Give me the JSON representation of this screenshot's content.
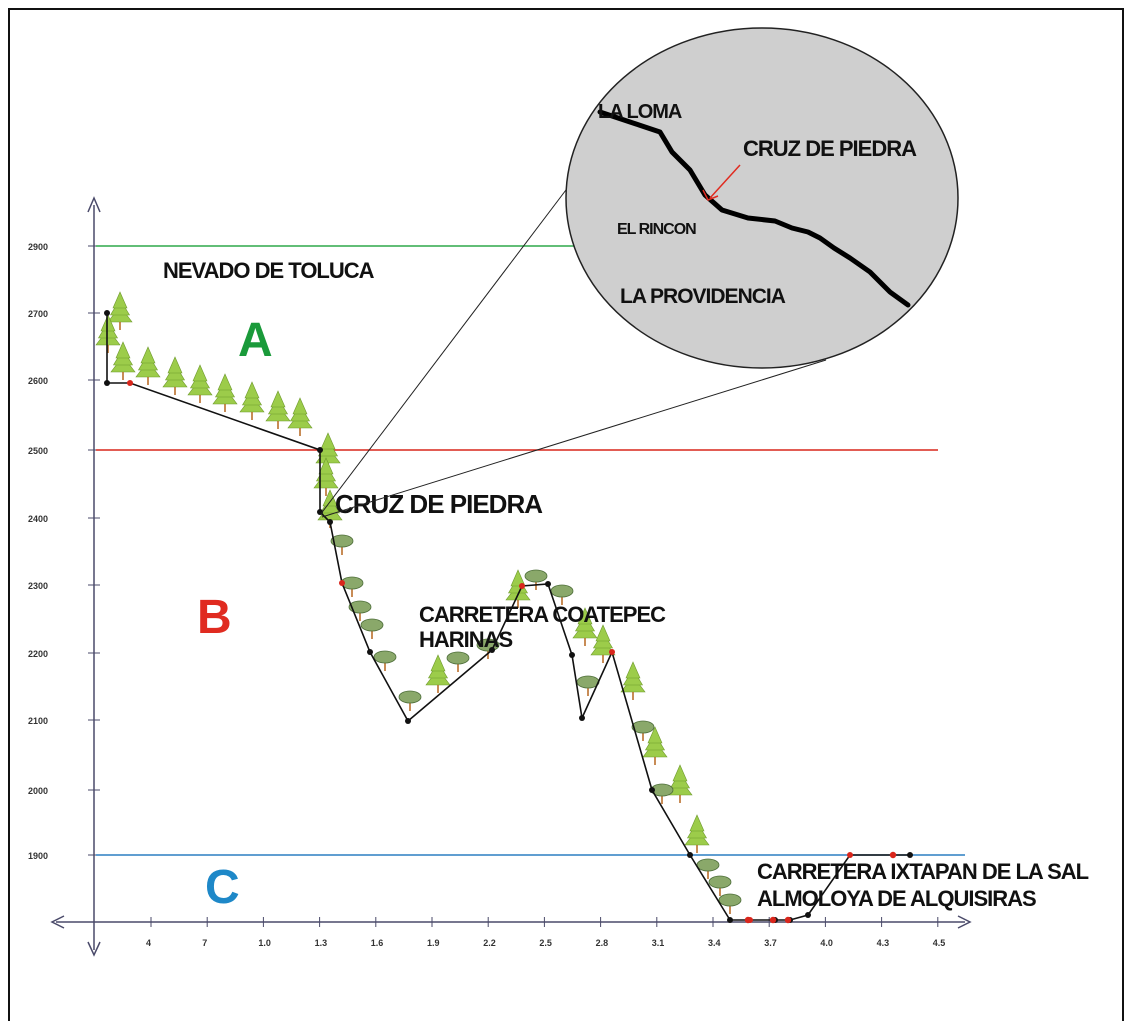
{
  "colors": {
    "zone_a": "#1a9a3a",
    "zone_b": "#e02b20",
    "zone_c": "#1e88c8",
    "line_a": "#2fa84a",
    "line_b": "#d9261c",
    "line_c": "#2b7fc2",
    "profile": "#111111",
    "pine": "#9ccc4a",
    "oak": "#8aa86a",
    "lens": "#cfcfcf"
  },
  "labels": {
    "nevado": "NEVADO DE TOLUCA",
    "zone_a": "A",
    "zone_b": "B",
    "zone_c": "C",
    "cruz": "CRUZ DE PIEDRA",
    "coatepec_1": "CARRETERA COATEPEC",
    "coatepec_2": "HARINAS",
    "ixtapan_1": "CARRETERA IXTAPAN DE LA SAL",
    "ixtapan_2": "ALMOLOYA DE ALQUISIRAS"
  },
  "inset": {
    "la_loma": "LA LOMA",
    "cruz": "CRUZ DE PIEDRA",
    "el_rincon": "EL RINCON",
    "la_providencia": "LA PROVIDENCIA"
  },
  "chart_data": {
    "type": "line",
    "title": "",
    "xlabel": "",
    "ylabel": "",
    "x_ticks": [
      "4",
      "7",
      "1.0",
      "1.3",
      "1.6",
      "1.9",
      "2.2",
      "2.5",
      "2.8",
      "3.1",
      "3.4",
      "3.7",
      "4.0",
      "4.3",
      "4.5"
    ],
    "y_ticks": [
      "1900",
      "2000",
      "2100",
      "2200",
      "2300",
      "2400",
      "2500",
      "2600",
      "2700",
      "2900"
    ],
    "reference_lines": [
      {
        "label": "NEVADO DE TOLUCA",
        "y": 2900
      },
      {
        "y": 2500
      },
      {
        "y": 1900
      }
    ],
    "series": [
      {
        "x": [
          0.1,
          0.1,
          0.4,
          1.3,
          1.35,
          1.35,
          1.45,
          1.75,
          2.3,
          2.55,
          2.7,
          2.85,
          3.2,
          3.4,
          3.7,
          3.85,
          4.1,
          4.2
        ],
        "y": [
          2690,
          2600,
          2600,
          2500,
          2400,
          2300,
          2200,
          2100,
          2200,
          2300,
          2100,
          2200,
          1950,
          1820,
          1820,
          1830,
          1900,
          1900
        ]
      }
    ]
  }
}
